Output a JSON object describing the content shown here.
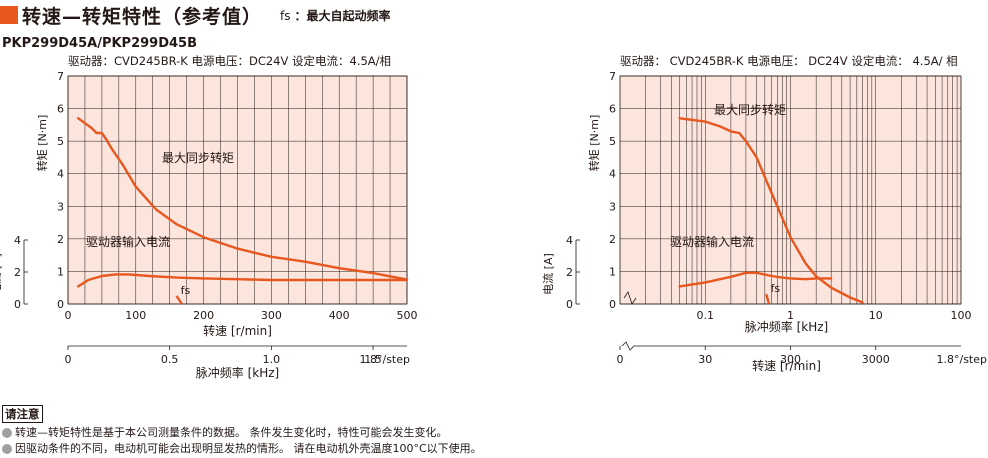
{
  "header": {
    "title": "转速—转矩特性（参考值）",
    "fs_symbol": "fs",
    "fs_desc": "：最大自起动频率",
    "model": "PKP299D45A/PKP299D45B"
  },
  "colors": {
    "accent": "#e8571e",
    "plot_bg": "#fbe5dd",
    "grid": "#231815"
  },
  "chart_data": [
    {
      "type": "line",
      "caption": "驱动器：CVD245BR-K  电源电压：DC24V  设定电流：4.5A/相",
      "x_axis": {
        "label": "转速 [r/min]",
        "range": [
          0,
          500
        ],
        "ticks": [
          0,
          100,
          200,
          300,
          400,
          500
        ]
      },
      "x2_axis": {
        "label": "脉冲频率 [kHz]",
        "range": [
          0,
          1.667
        ],
        "ticks": [
          "0",
          "0.5",
          "1.0",
          "1.5"
        ],
        "tick_values": [
          0,
          0.5,
          1.0,
          1.5
        ],
        "suffix": "1.8°/step"
      },
      "y_axis": {
        "label": "转矩 [N·m]",
        "range": [
          0,
          7
        ],
        "ticks": [
          0,
          1,
          2,
          3,
          4,
          5,
          6,
          7
        ]
      },
      "y2_axis": {
        "label": "电流 [A]",
        "range": [
          0,
          4
        ],
        "ticks": [
          0,
          2,
          4
        ]
      },
      "grid": true,
      "series": [
        {
          "name": "最大同步转矩",
          "axis": "torque",
          "x": [
            15,
            25,
            35,
            42,
            50,
            55,
            65,
            80,
            100,
            130,
            160,
            200,
            250,
            300,
            350,
            400,
            450,
            500
          ],
          "y": [
            5.7,
            5.55,
            5.4,
            5.25,
            5.25,
            5.1,
            4.75,
            4.3,
            3.6,
            2.9,
            2.45,
            2.05,
            1.7,
            1.45,
            1.3,
            1.1,
            0.95,
            0.75
          ]
        },
        {
          "name": "驱动器输入电流",
          "axis": "current",
          "x": [
            15,
            30,
            50,
            70,
            90,
            120,
            160,
            200,
            250,
            300,
            350,
            400,
            450,
            500
          ],
          "y": [
            1.1,
            1.5,
            1.75,
            1.85,
            1.85,
            1.75,
            1.65,
            1.6,
            1.55,
            1.5,
            1.5,
            1.5,
            1.5,
            1.5
          ]
        }
      ],
      "fs": {
        "name": "fs",
        "x": [
          160,
          168
        ],
        "y": [
          0.25,
          0
        ]
      }
    },
    {
      "type": "line",
      "caption": "驱动器： CVD245BR-K  电源电压： DC24V  设定电流： 4.5A/ 相",
      "x_axis": {
        "label": "脉冲频率 [kHz]",
        "scale": "log",
        "range": [
          0.01,
          100
        ],
        "ticks": [
          "0.1",
          "1",
          "10",
          "100"
        ],
        "tick_values": [
          0.1,
          1,
          10,
          100
        ]
      },
      "x2_axis": {
        "label": "转速 [r/min]",
        "scale": "log",
        "ticks": [
          "0",
          "30",
          "300",
          "3000"
        ],
        "tick_values": [
          0,
          30,
          300,
          3000
        ],
        "suffix": "1.8°/step"
      },
      "y_axis": {
        "label": "转矩 [N·m]",
        "range": [
          0,
          7
        ],
        "ticks": [
          0,
          1,
          2,
          3,
          4,
          5,
          6,
          7
        ]
      },
      "y2_axis": {
        "label": "电流 [A]",
        "range": [
          0,
          4
        ],
        "ticks": [
          0,
          2,
          4
        ]
      },
      "grid": true,
      "series": [
        {
          "name": "最大同步转矩",
          "axis": "torque",
          "x": [
            0.05,
            0.1,
            0.15,
            0.2,
            0.25,
            0.3,
            0.4,
            0.5,
            0.7,
            1,
            1.5,
            2,
            3,
            5,
            7
          ],
          "y": [
            5.7,
            5.6,
            5.45,
            5.3,
            5.25,
            5.0,
            4.5,
            3.9,
            3.0,
            2.05,
            1.25,
            0.85,
            0.5,
            0.2,
            0.05
          ]
        },
        {
          "name": "驱动器输入电流",
          "axis": "current",
          "x": [
            0.05,
            0.1,
            0.2,
            0.3,
            0.4,
            0.6,
            0.8,
            1,
            1.5,
            2,
            3
          ],
          "y": [
            1.1,
            1.35,
            1.7,
            1.95,
            1.95,
            1.75,
            1.65,
            1.6,
            1.55,
            1.6,
            1.6
          ]
        }
      ],
      "fs": {
        "name": "fs",
        "x": [
          0.52,
          0.56
        ],
        "y": [
          0.3,
          0
        ]
      }
    }
  ],
  "notes": {
    "title": "请注意",
    "lines": [
      "转速—转矩特性是基于本公司测量条件的数据。 条件发生变化时，特性可能会发生变化。",
      "因驱动条件的不同，电动机可能会出现明显发热的情形。 请在电动机外壳温度100°C以下使用。"
    ]
  }
}
